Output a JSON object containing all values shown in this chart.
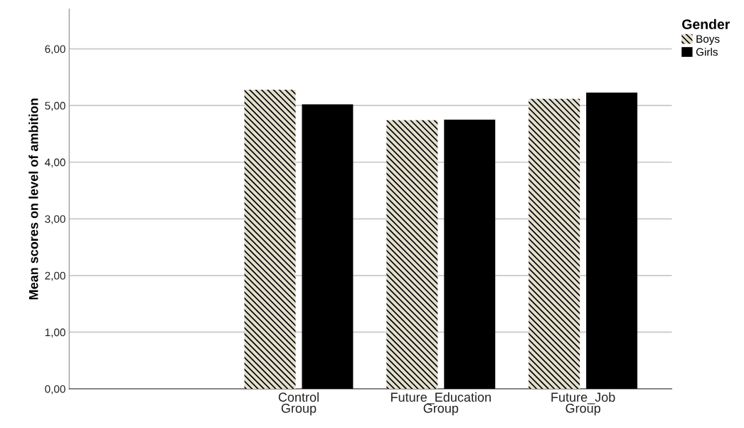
{
  "chart_data": {
    "type": "bar",
    "ylabel": "Mean scores on level of ambition",
    "legend_title": "Gender",
    "categories": [
      null,
      "Control\nGroup",
      "Future_Education\nGroup",
      "Future_Job\nGroup"
    ],
    "series": [
      {
        "name": "Boys",
        "color": "#e3dfcc",
        "values": [
          null,
          5.28,
          4.74,
          5.12
        ]
      },
      {
        "name": "Girls",
        "color": "#000000",
        "values": [
          null,
          5.02,
          4.75,
          5.23
        ]
      }
    ],
    "ylim": [
      0,
      6.7
    ],
    "yticks": [
      {
        "value": 0,
        "label": "0,00"
      },
      {
        "value": 1,
        "label": "1,00"
      },
      {
        "value": 2,
        "label": "2,00"
      },
      {
        "value": 3,
        "label": "3,00"
      },
      {
        "value": 4,
        "label": "4,00"
      },
      {
        "value": 5,
        "label": "5,00"
      },
      {
        "value": 6,
        "label": "6,00"
      }
    ],
    "grid": "y",
    "legend": "top right"
  }
}
